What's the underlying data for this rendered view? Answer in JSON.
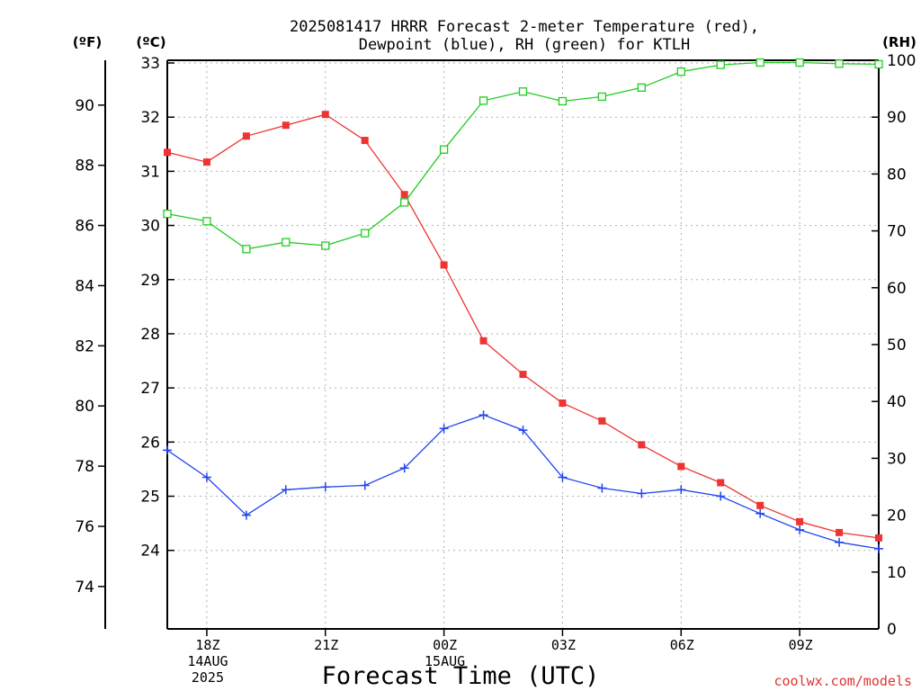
{
  "chart_data": {
    "type": "line",
    "title_line1": "2025081417 HRRR Forecast 2-meter Temperature (red),",
    "title_line2": "Dewpoint (blue), RH (green) for KTLH",
    "xlabel": "Forecast Time (UTC)",
    "credit": "coolwx.com/models",
    "left_outer_label": "(ºF)",
    "left_inner_label": "(ºC)",
    "right_label": "(RH)",
    "x_hours": [
      17,
      18,
      19,
      20,
      21,
      22,
      23,
      24,
      25,
      26,
      27,
      28,
      29,
      30,
      31,
      32,
      33,
      34,
      35
    ],
    "x_ticks": [
      {
        "hour": 18,
        "lines": [
          "18Z",
          "14AUG",
          "2025"
        ]
      },
      {
        "hour": 21,
        "lines": [
          "21Z"
        ]
      },
      {
        "hour": 24,
        "lines": [
          "00Z",
          "15AUG"
        ]
      },
      {
        "hour": 27,
        "lines": [
          "03Z"
        ]
      },
      {
        "hour": 30,
        "lines": [
          "06Z"
        ]
      },
      {
        "hour": 33,
        "lines": [
          "09Z"
        ]
      }
    ],
    "xlim": [
      17,
      35
    ],
    "celsius_ylim": [
      22.55,
      33.05
    ],
    "celsius_ticks": [
      24,
      25,
      26,
      27,
      28,
      29,
      30,
      31,
      32,
      33
    ],
    "fahrenheit_ticks": [
      74,
      76,
      78,
      80,
      82,
      84,
      86,
      88,
      90
    ],
    "rh_ylim": [
      0,
      100
    ],
    "rh_ticks": [
      0,
      10,
      20,
      30,
      40,
      50,
      60,
      70,
      80,
      90,
      100
    ],
    "grid": true,
    "series": [
      {
        "name": "Temperature",
        "axis": "celsius",
        "color": "#ee3333",
        "marker": "filled-square",
        "values": [
          31.35,
          31.17,
          31.65,
          31.85,
          32.05,
          31.57,
          30.57,
          29.27,
          27.87,
          27.25,
          26.72,
          26.39,
          25.95,
          25.55,
          25.25,
          24.83,
          24.53,
          24.33,
          24.23
        ]
      },
      {
        "name": "Dewpoint",
        "axis": "celsius",
        "color": "#2244ee",
        "marker": "plus",
        "values": [
          25.85,
          25.35,
          24.65,
          25.12,
          25.17,
          25.2,
          25.52,
          26.25,
          26.5,
          26.22,
          25.35,
          25.15,
          25.05,
          25.12,
          25.0,
          24.68,
          24.38,
          24.15,
          24.03
        ]
      },
      {
        "name": "RH",
        "axis": "rh",
        "color": "#22cc22",
        "marker": "open-square",
        "values": [
          73,
          71.7,
          66.8,
          68.0,
          67.4,
          69.6,
          75.0,
          84.3,
          92.9,
          94.5,
          92.8,
          93.6,
          95.2,
          98.0,
          99.2,
          99.6,
          99.6,
          99.4,
          99.3
        ]
      }
    ]
  }
}
